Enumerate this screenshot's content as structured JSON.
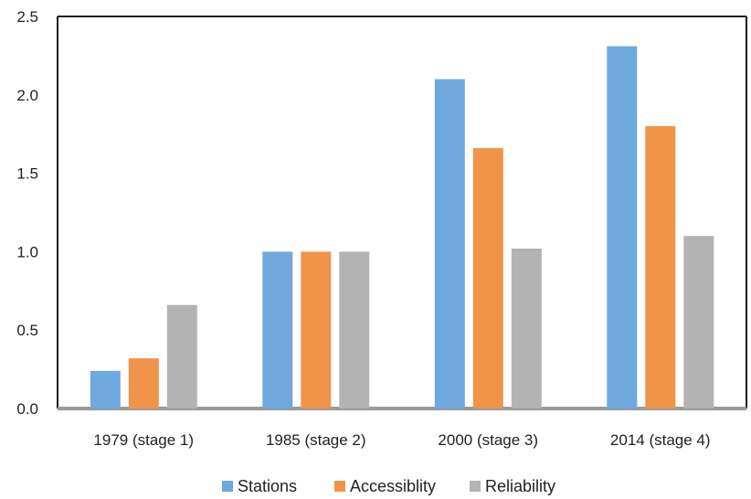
{
  "chart_data": {
    "type": "bar",
    "title": "",
    "xlabel": "",
    "ylabel": "",
    "categories": [
      "1979 (stage 1)",
      "1985 (stage 2)",
      "2000 (stage 3)",
      "2014 (stage 4)"
    ],
    "series": [
      {
        "name": "Stations",
        "color": "#6fa8dc",
        "values": [
          0.24,
          1.0,
          2.1,
          2.31
        ]
      },
      {
        "name": "Accessiblity",
        "color": "#f0944a",
        "values": [
          0.32,
          1.0,
          1.66,
          1.8
        ]
      },
      {
        "name": "Reliability",
        "color": "#b3b3b3",
        "values": [
          0.66,
          1.0,
          1.02,
          1.1
        ]
      }
    ],
    "ylim": [
      0,
      2.5
    ],
    "yticks": [
      0.0,
      0.5,
      1.0,
      1.5,
      2.0,
      2.5
    ],
    "ytick_labels": [
      "0.0",
      "0.5",
      "1.0",
      "1.5",
      "2.0",
      "2.5"
    ],
    "grid": false,
    "legend_position": "bottom"
  }
}
